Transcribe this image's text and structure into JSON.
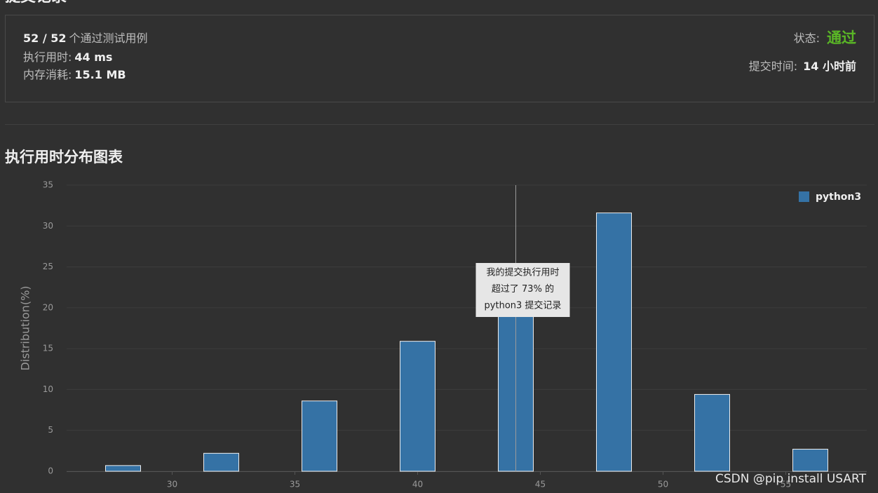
{
  "header": {
    "title": "提交记录"
  },
  "summary": {
    "passed": "52 / 52",
    "passed_label": "个通过测试用例",
    "runtime_label": "执行用时:",
    "runtime": "44 ms",
    "memory_label": "内存消耗:",
    "memory": "15.1 MB",
    "status_label": "状态:",
    "status": "通过",
    "time_label": "提交时间:",
    "time": "14 小时前"
  },
  "chart_data": {
    "type": "bar",
    "title": "执行用时分布图表",
    "y_label": "Distribution(%)",
    "x": [
      28,
      32,
      36,
      40,
      44,
      48,
      52,
      56
    ],
    "series": [
      {
        "name": "python3",
        "color": "#3572a5",
        "values": [
          0.7,
          2.2,
          8.6,
          15.9,
          22,
          31.6,
          9.4,
          2.7
        ]
      }
    ],
    "xlim": [
      25.7,
      58.3
    ],
    "ylim": [
      0,
      35
    ],
    "xticks": [
      30,
      35,
      40,
      45,
      50,
      55
    ],
    "yticks": [
      0,
      5,
      10,
      15,
      20,
      25,
      30,
      35
    ],
    "grid": true,
    "legend": "top-right",
    "marker_x": 44,
    "annotation": [
      "我的提交执行用时",
      "超过了 73% 的",
      "python3 提交记录"
    ]
  },
  "watermark": "CSDN @pip install USART"
}
